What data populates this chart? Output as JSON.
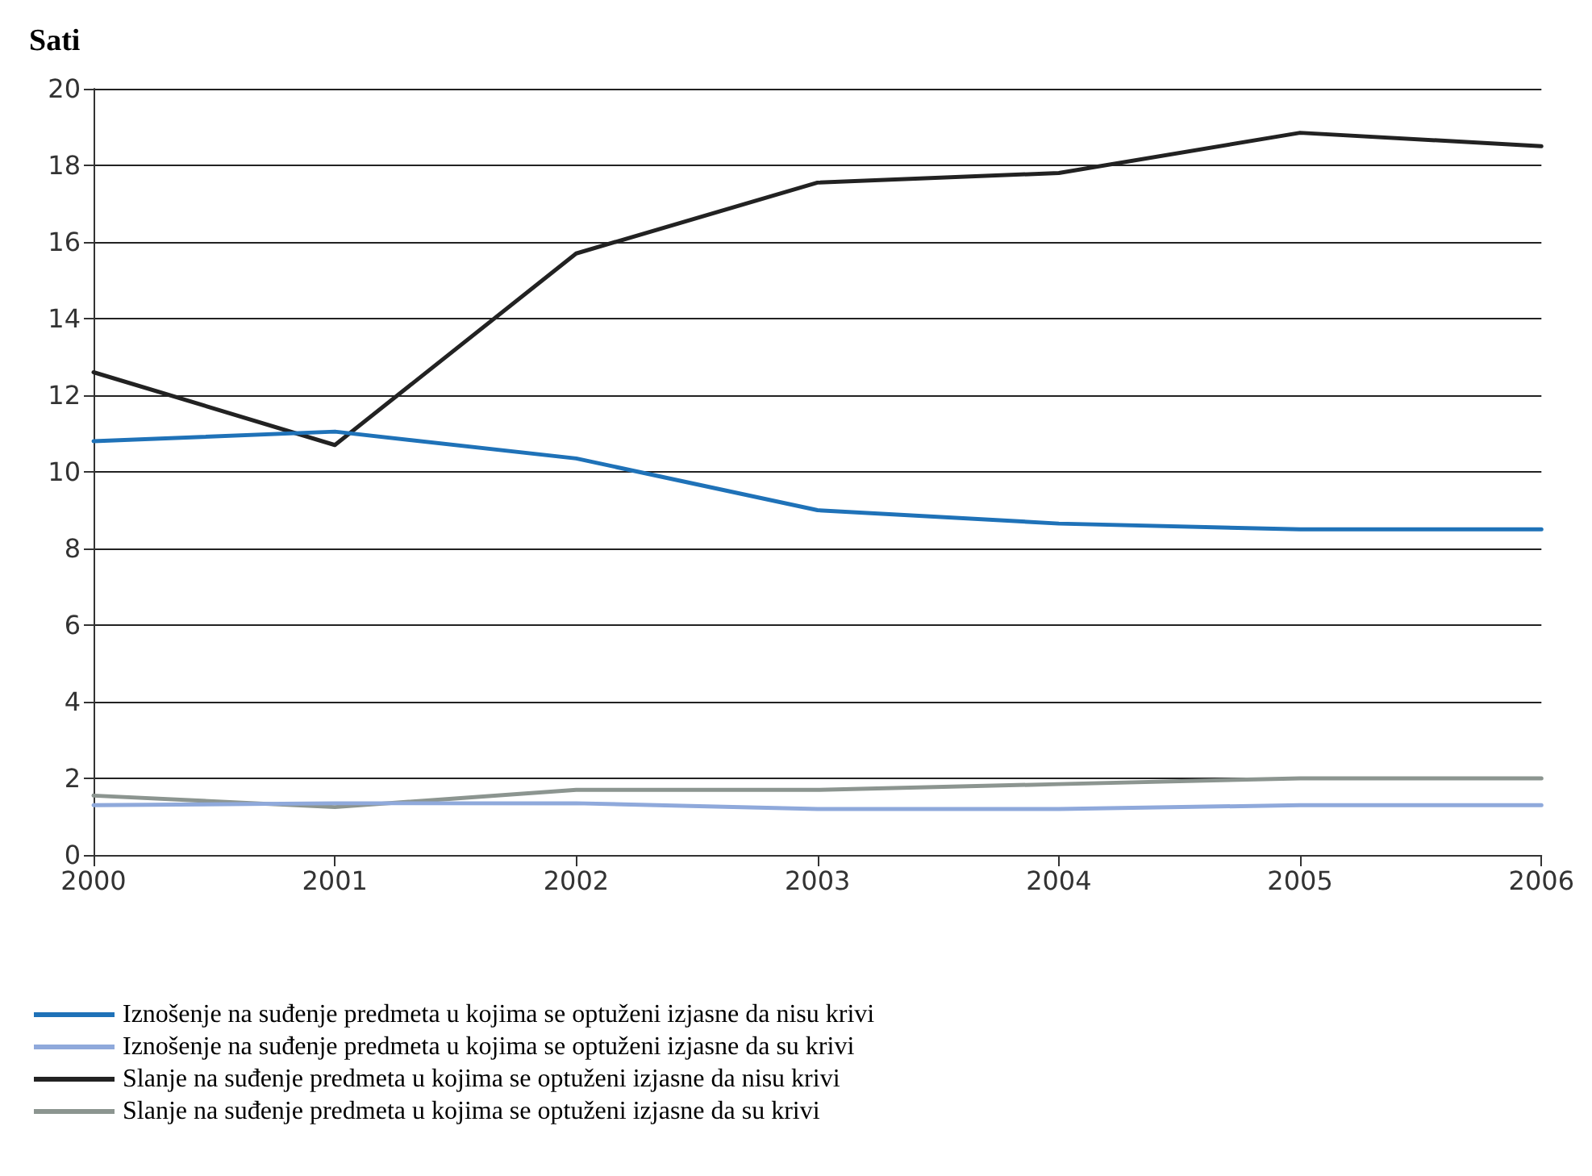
{
  "chart_data": {
    "type": "line",
    "ylabel": "Sati",
    "x": [
      2000,
      2001,
      2002,
      2003,
      2004,
      2005,
      2006
    ],
    "xlim": [
      2000,
      2006
    ],
    "xticks": [
      2000,
      2001,
      2002,
      2003,
      2004,
      2005,
      2006
    ],
    "ylim": [
      0,
      20
    ],
    "yticks": [
      0,
      2,
      4,
      6,
      8,
      10,
      12,
      14,
      16,
      18,
      20
    ],
    "grid": "y",
    "legend": "bottom",
    "marker": "none",
    "line_style": "solid",
    "series": [
      {
        "name": "Iznošenje na suđenje predmeta u kojima se optuženi izjasne da nisu krivi",
        "color": "#1f72b8",
        "values": [
          10.8,
          11.05,
          10.35,
          9.0,
          8.65,
          8.5,
          8.5
        ]
      },
      {
        "name": "Iznošenje na suđenje predmeta u kojima se optuženi izjasne da su krivi",
        "color": "#8fa9db",
        "values": [
          1.3,
          1.35,
          1.35,
          1.2,
          1.2,
          1.3,
          1.3
        ]
      },
      {
        "name": "Slanje na suđenje predmeta u kojima se optuženi izjasne da nisu krivi",
        "color": "#222222",
        "values": [
          12.6,
          10.7,
          15.7,
          17.55,
          17.8,
          18.85,
          18.5
        ]
      },
      {
        "name": "Slanje na suđenje predmeta u kojima se optuženi izjasne da su krivi",
        "color": "#8c9590",
        "values": [
          1.55,
          1.25,
          1.7,
          1.7,
          1.85,
          2.0,
          2.0
        ]
      }
    ]
  }
}
